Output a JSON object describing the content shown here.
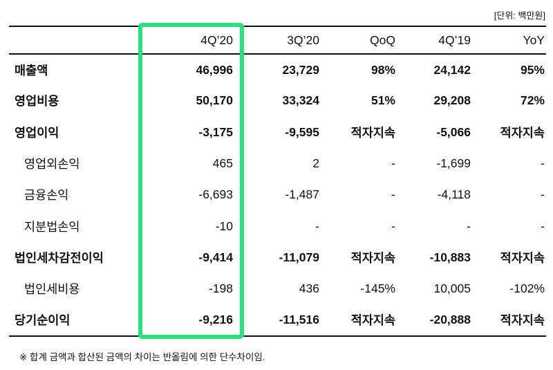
{
  "page": {
    "unit_label": "[단위: 백만원]",
    "footnote": "※ 합계 금액과 합산된 금액의 차이는 반올림에 의한 단수차이임."
  },
  "table": {
    "columns": [
      "",
      "4Q’20",
      "3Q’20",
      "QoQ",
      "4Q’19",
      "YoY"
    ],
    "highlight": {
      "column": "4Q’20",
      "color": "#2ee07d"
    },
    "rows": [
      {
        "label": "매출액",
        "bold": true,
        "indent": false,
        "values": [
          "46,996",
          "23,729",
          "98%",
          "24,142",
          "95%"
        ]
      },
      {
        "label": "영업비용",
        "bold": true,
        "indent": false,
        "values": [
          "50,170",
          "33,324",
          "51%",
          "29,208",
          "72%"
        ]
      },
      {
        "label": "영업이익",
        "bold": true,
        "indent": false,
        "values": [
          "-3,175",
          "-9,595",
          "적자지속",
          "-5,066",
          "적자지속"
        ]
      },
      {
        "label": "영업외손익",
        "bold": false,
        "indent": true,
        "values": [
          "465",
          "2",
          "-",
          "-1,699",
          "-"
        ]
      },
      {
        "label": "금융손익",
        "bold": false,
        "indent": true,
        "values": [
          "-6,693",
          "-1,487",
          "-",
          "-4,118",
          "-"
        ]
      },
      {
        "label": "지분법손익",
        "bold": false,
        "indent": true,
        "values": [
          "-10",
          "-",
          "-",
          "-",
          "-"
        ]
      },
      {
        "label": "법인세차감전이익",
        "bold": true,
        "indent": false,
        "values": [
          "-9,414",
          "-11,079",
          "적자지속",
          "-10,883",
          "적자지속"
        ]
      },
      {
        "label": "법인세비용",
        "bold": false,
        "indent": true,
        "values": [
          "-198",
          "436",
          "-145%",
          "10,005",
          "-102%"
        ]
      },
      {
        "label": "당기순이익",
        "bold": true,
        "indent": false,
        "values": [
          "-9,216",
          "-11,516",
          "적자지속",
          "-20,888",
          "적자지속"
        ]
      }
    ]
  },
  "chart_data": {
    "type": "table",
    "title": "분기 손익계산서 요약",
    "unit": "백만원",
    "columns": [
      "4Q'20",
      "3Q'20",
      "QoQ",
      "4Q'19",
      "YoY"
    ],
    "highlighted_column": "4Q'20",
    "rows": [
      {
        "label": "매출액",
        "values": [
          "46,996",
          "23,729",
          "98%",
          "24,142",
          "95%"
        ]
      },
      {
        "label": "영업비용",
        "values": [
          "50,170",
          "33,324",
          "51%",
          "29,208",
          "72%"
        ]
      },
      {
        "label": "영업이익",
        "values": [
          "-3,175",
          "-9,595",
          "적자지속",
          "-5,066",
          "적자지속"
        ]
      },
      {
        "label": "영업외손익",
        "values": [
          "465",
          "2",
          "-",
          "-1,699",
          "-"
        ]
      },
      {
        "label": "금융손익",
        "values": [
          "-6,693",
          "-1,487",
          "-",
          "-4,118",
          "-"
        ]
      },
      {
        "label": "지분법손익",
        "values": [
          "-10",
          "-",
          "-",
          "-",
          "-"
        ]
      },
      {
        "label": "법인세차감전이익",
        "values": [
          "-9,414",
          "-11,079",
          "적자지속",
          "-10,883",
          "적자지속"
        ]
      },
      {
        "label": "법인세비용",
        "values": [
          "-198",
          "436",
          "-145%",
          "10,005",
          "-102%"
        ]
      },
      {
        "label": "당기순이익",
        "values": [
          "-9,216",
          "-11,516",
          "적자지속",
          "-20,888",
          "적자지속"
        ]
      }
    ],
    "footnote": "※ 합계 금액과 합산된 금액의 차이는 반올림에 의한 단수차이임."
  }
}
